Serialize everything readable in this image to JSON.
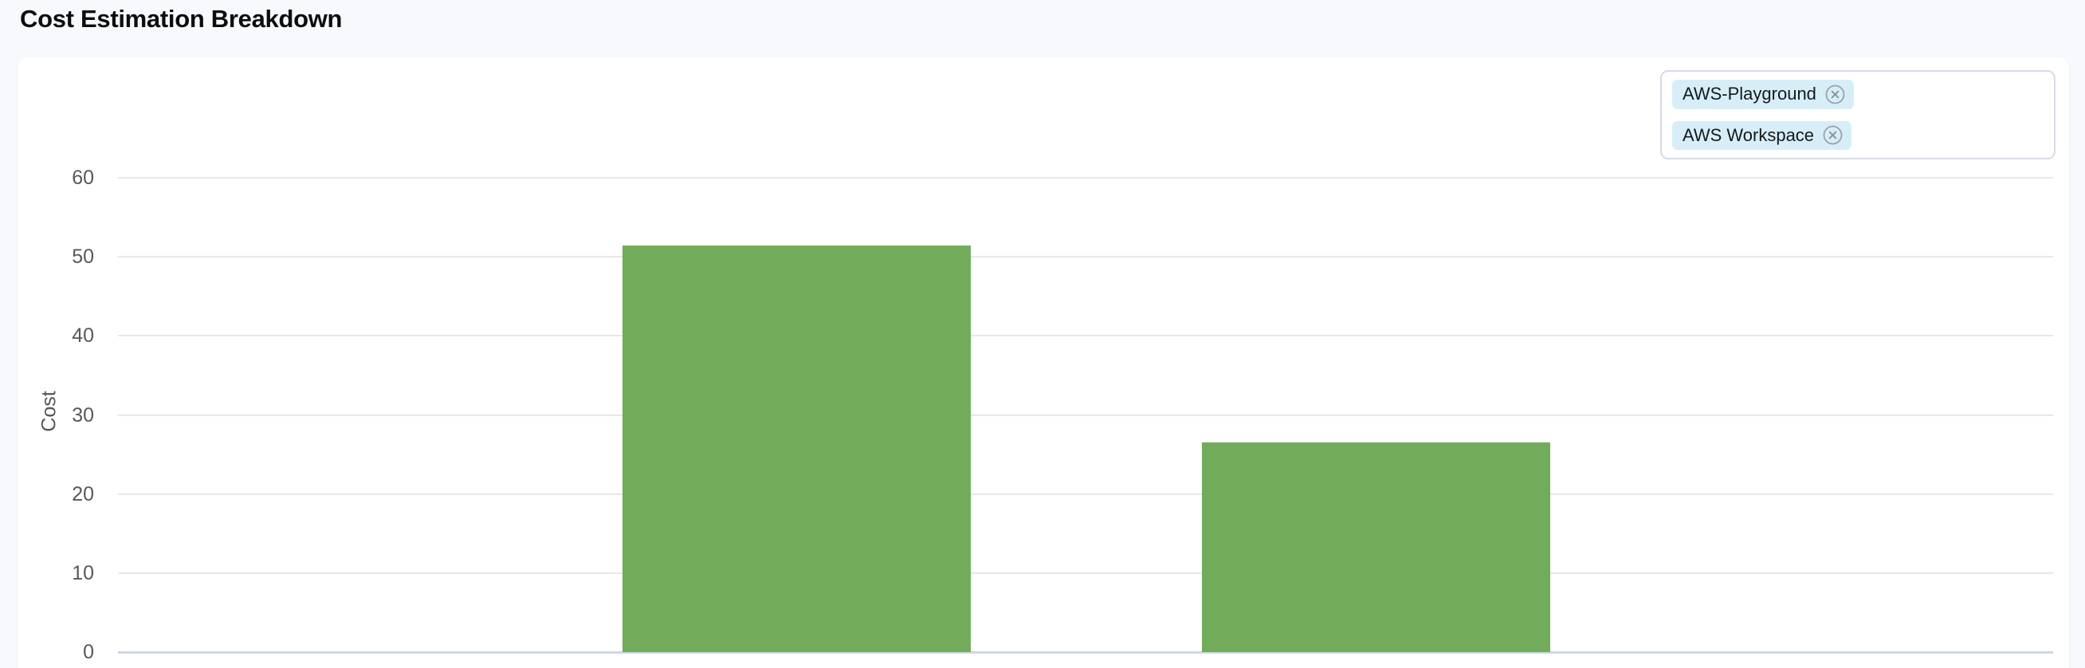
{
  "page": {
    "title": "Cost Estimation Breakdown"
  },
  "legend": {
    "chips": [
      {
        "label": "AWS-Playground",
        "remove_icon": "circle-x-icon"
      },
      {
        "label": "AWS Workspace",
        "remove_icon": "circle-x-icon"
      }
    ],
    "chip_bg": "#d7eef8",
    "border_color": "#d9dae6"
  },
  "chart_data": {
    "type": "bar",
    "title": "Cost Estimation Breakdown",
    "categories": [
      "AWS-Playground",
      "AWS Workspace"
    ],
    "values": [
      51.4,
      26.5
    ],
    "xlabel": "",
    "ylabel": "Cost",
    "ylim": [
      0,
      60
    ],
    "yticks": [
      0,
      10,
      20,
      30,
      40,
      50,
      60
    ],
    "grid": true,
    "legend_position": "top-right",
    "bar_color": "#72ac5a",
    "grid_color": "#e7e7e7",
    "axis_line_color": "#cdd6e3",
    "tick_label_color": "#57585a"
  }
}
